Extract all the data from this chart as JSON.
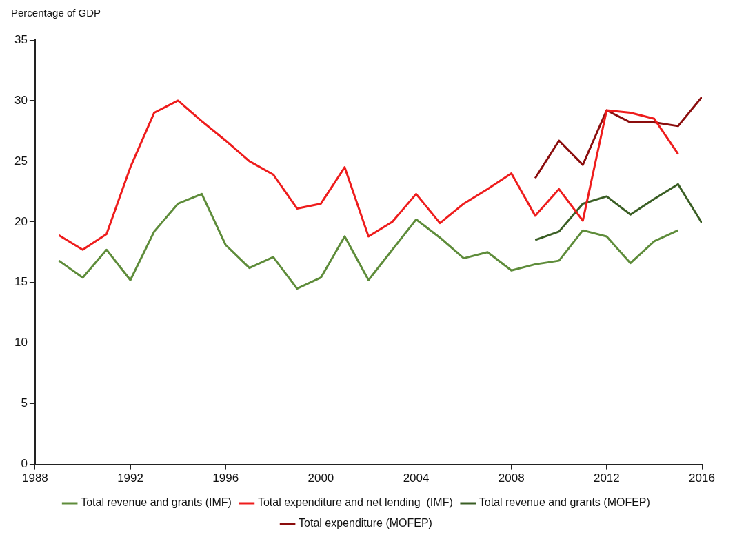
{
  "chart_data": {
    "type": "line",
    "ylabel": "Percentage of GDP",
    "xlim": [
      1988,
      2016
    ],
    "xticks": [
      1988,
      1992,
      1996,
      2000,
      2004,
      2008,
      2012,
      2016
    ],
    "ylim": [
      0,
      35
    ],
    "yticks": [
      0,
      5,
      10,
      15,
      20,
      25,
      30,
      35
    ],
    "grid": false,
    "legend": "bottom",
    "marker": "none",
    "line_style": "solid",
    "series": [
      {
        "name": "Total revenue and grants (IMF)",
        "color": "#5e8c3a",
        "x": [
          1989,
          1990,
          1991,
          1992,
          1993,
          1994,
          1995,
          1996,
          1997,
          1998,
          1999,
          2000,
          2001,
          2002,
          2003,
          2004,
          2005,
          2006,
          2007,
          2008,
          2009,
          2010,
          2011,
          2012,
          2013,
          2014,
          2015
        ],
        "values": [
          16.8,
          15.4,
          17.7,
          15.2,
          19.2,
          21.5,
          22.3,
          18.1,
          16.2,
          17.1,
          14.5,
          15.4,
          18.8,
          15.2,
          17.7,
          20.2,
          18.7,
          17.0,
          17.5,
          16.0,
          16.5,
          16.8,
          19.3,
          18.8,
          16.6,
          18.4,
          19.3
        ]
      },
      {
        "name": "Total expenditure and net lending  (IMF)",
        "color": "#ee1c1c",
        "x": [
          1989,
          1990,
          1991,
          1992,
          1993,
          1994,
          1995,
          1996,
          1997,
          1998,
          1999,
          2000,
          2001,
          2002,
          2003,
          2004,
          2005,
          2006,
          2007,
          2008,
          2009,
          2010,
          2011,
          2012,
          2013,
          2014,
          2015
        ],
        "values": [
          18.9,
          17.7,
          19.0,
          24.5,
          29.0,
          30.0,
          28.3,
          26.7,
          25.0,
          23.9,
          21.1,
          21.5,
          24.5,
          18.8,
          20.0,
          22.3,
          19.9,
          21.5,
          22.7,
          24.0,
          20.5,
          22.7,
          20.1,
          29.2,
          29.0,
          28.5,
          25.6
        ]
      },
      {
        "name": "Total revenue and grants (MOFEP)",
        "color": "#3a5e24",
        "x": [
          2009,
          2010,
          2011,
          2012,
          2013,
          2014,
          2015,
          2016
        ],
        "values": [
          18.5,
          19.2,
          21.5,
          22.1,
          20.6,
          21.9,
          23.1,
          19.9
        ]
      },
      {
        "name": "Total expenditure (MOFEP)",
        "color": "#8b0d0d",
        "x": [
          2009,
          2010,
          2011,
          2012,
          2013,
          2014,
          2015,
          2016
        ],
        "values": [
          23.6,
          26.7,
          24.7,
          29.2,
          28.2,
          28.2,
          27.9,
          30.3
        ]
      }
    ]
  }
}
